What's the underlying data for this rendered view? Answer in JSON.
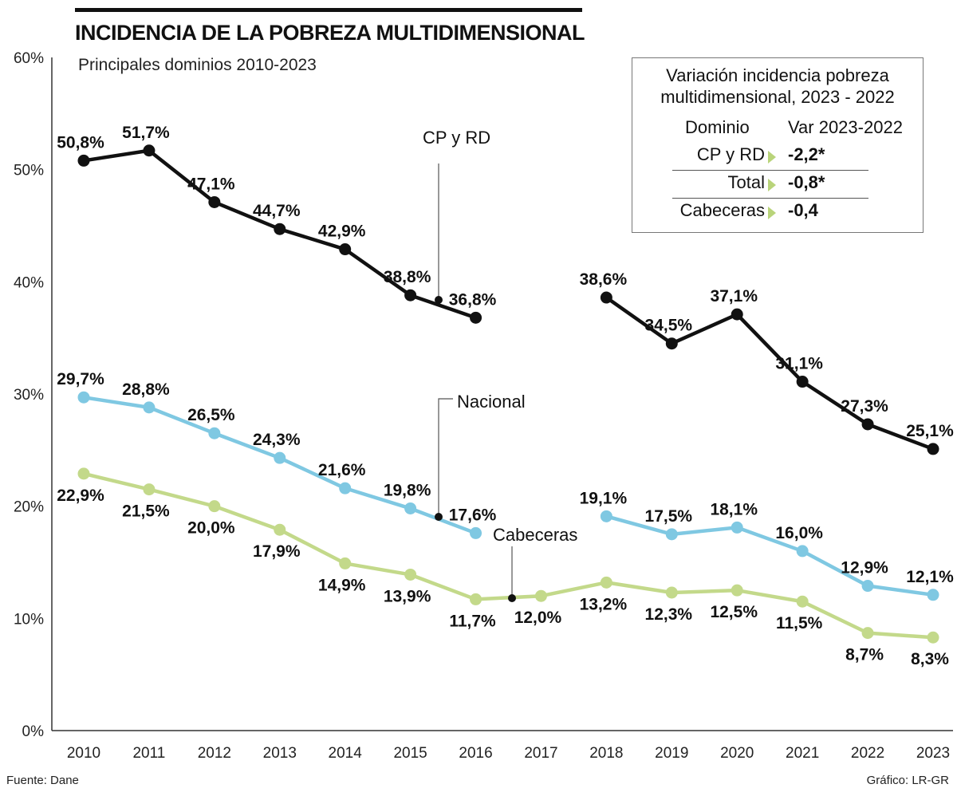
{
  "title": "INCIDENCIA DE LA POBREZA MULTIDIMENSIONAL",
  "subtitle": "Principales dominios 2010-2023",
  "source": "Fuente: Dane",
  "credit": "Gráfico: LR-GR",
  "legend_table": {
    "title_line1": "Variación incidencia pobreza",
    "title_line2": "multidimensional, 2023 - 2022",
    "col1": "Dominio",
    "col2": "Var 2023-2022",
    "rows": [
      {
        "name": "CP y RD",
        "value": "-2,2*"
      },
      {
        "name": "Total",
        "value": "-0,8*"
      },
      {
        "name": "Cabeceras",
        "value": "-0,4"
      }
    ],
    "marker_color": "#b9d47a"
  },
  "chart_data": {
    "type": "line",
    "title": "INCIDENCIA DE LA POBREZA MULTIDIMENSIONAL",
    "subtitle": "Principales dominios 2010-2023",
    "categories": [
      "2010",
      "2011",
      "2012",
      "2013",
      "2014",
      "2015",
      "2016",
      "2017",
      "2018",
      "2019",
      "2020",
      "2021",
      "2022",
      "2023"
    ],
    "ylim": [
      0,
      60
    ],
    "yticks": [
      "0%",
      "10%",
      "20%",
      "30%",
      "40%",
      "50%",
      "60%"
    ],
    "grid": false,
    "series": [
      {
        "name": "CP y RD",
        "color": "#111111",
        "label_pos": "above",
        "values": [
          50.8,
          51.7,
          47.1,
          44.7,
          42.9,
          38.8,
          36.8,
          null,
          38.6,
          34.5,
          37.1,
          31.1,
          27.3,
          25.1
        ],
        "labels": [
          "50,8%",
          "51,7%",
          "47,1%",
          "44,7%",
          "42,9%",
          "38,8%",
          "36,8%",
          null,
          "38,6%",
          "34,5%",
          "37,1%",
          "31,1%",
          "27,3%",
          "25,1%"
        ]
      },
      {
        "name": "Nacional",
        "color": "#7fc8e2",
        "label_pos": "above",
        "values": [
          29.7,
          28.8,
          26.5,
          24.3,
          21.6,
          19.8,
          17.6,
          null,
          19.1,
          17.5,
          18.1,
          16.0,
          12.9,
          12.1
        ],
        "labels": [
          "29,7%",
          "28,8%",
          "26,5%",
          "24,3%",
          "21,6%",
          "19,8%",
          "17,6%",
          null,
          "19,1%",
          "17,5%",
          "18,1%",
          "16,0%",
          "12,9%",
          "12,1%"
        ]
      },
      {
        "name": "Cabeceras",
        "color": "#c3d98a",
        "label_pos": "below",
        "values": [
          22.9,
          21.5,
          20.0,
          17.9,
          14.9,
          13.9,
          11.7,
          12.0,
          13.2,
          12.3,
          12.5,
          11.5,
          8.7,
          8.3
        ],
        "labels": [
          "22,9%",
          "21,5%",
          "20,0%",
          "17,9%",
          "14,9%",
          "13,9%",
          "11,7%",
          "12,0%",
          "13,2%",
          "12,3%",
          "12,5%",
          "11,5%",
          "8,7%",
          "8,3%"
        ]
      }
    ]
  }
}
